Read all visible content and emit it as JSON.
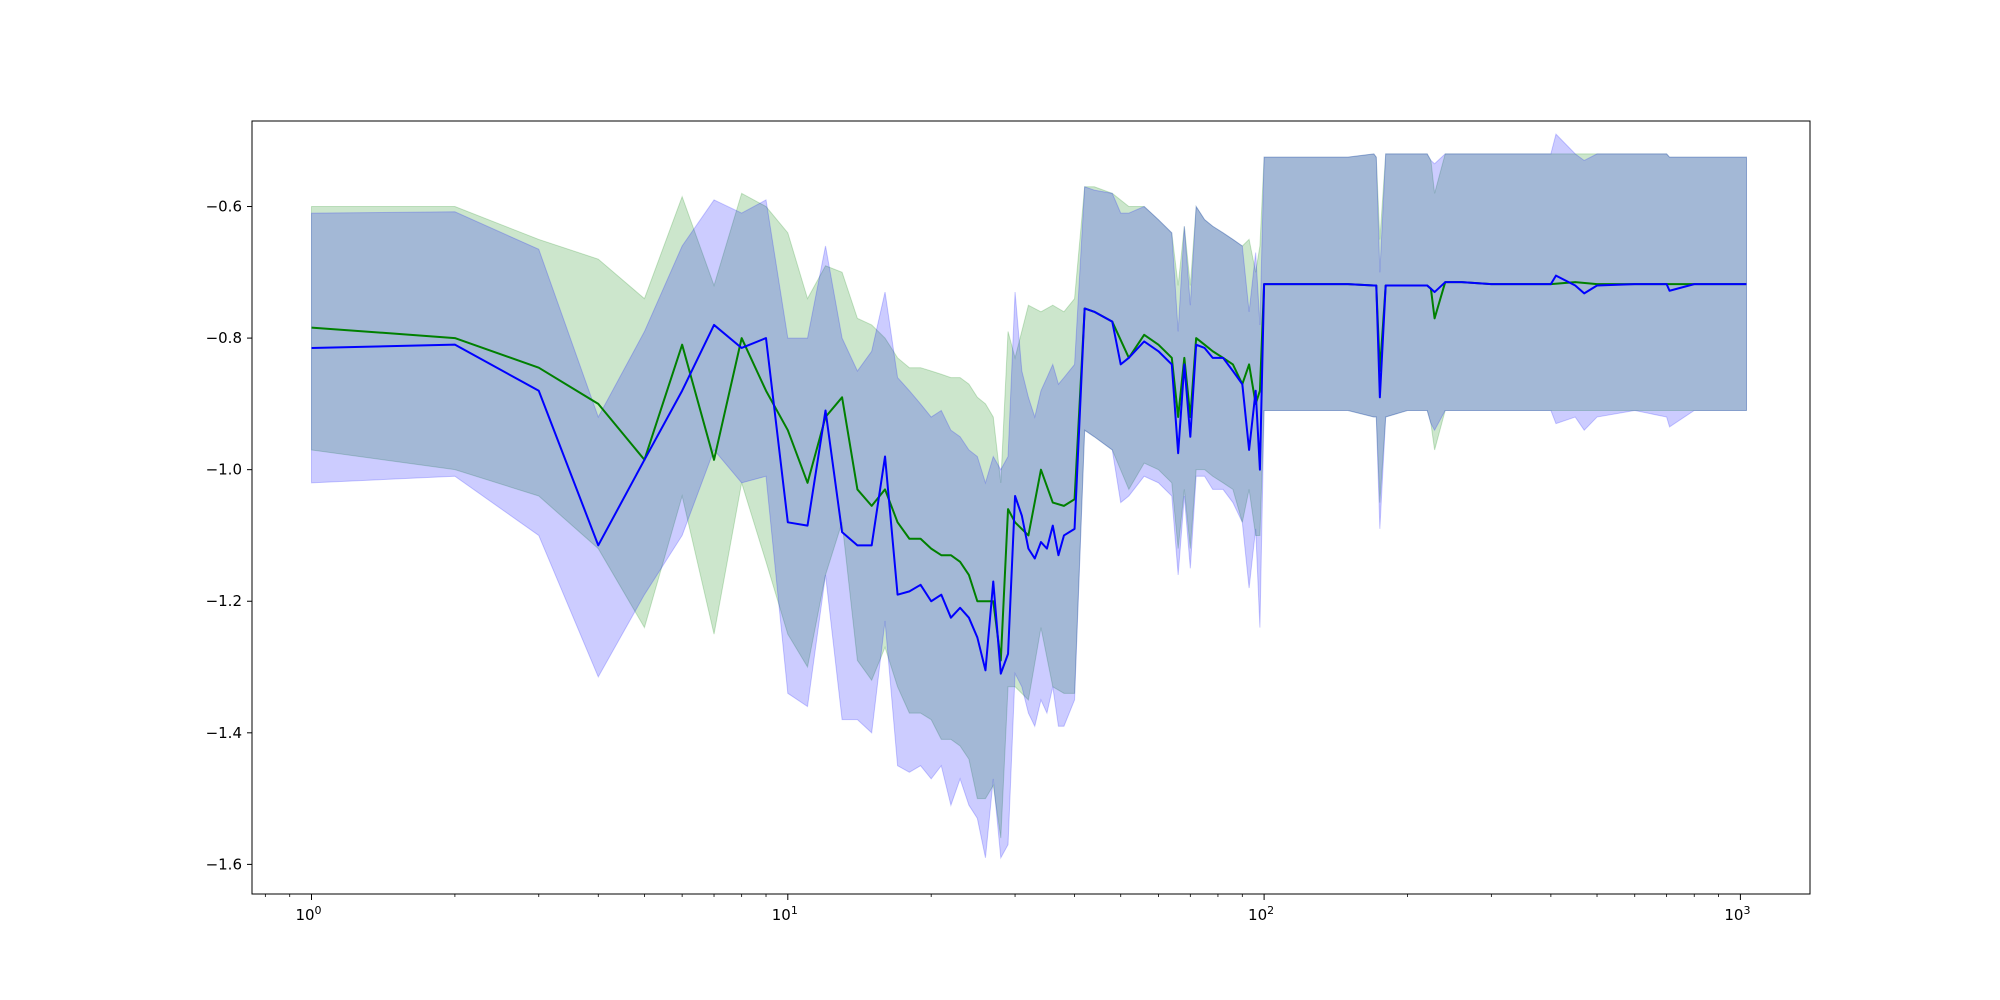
{
  "chart_data": {
    "type": "line",
    "title": "",
    "xlabel": "",
    "ylabel": "",
    "xscale": "log",
    "xlim": [
      0.75,
      1400
    ],
    "ylim": [
      -1.645,
      -0.47
    ],
    "grid": false,
    "legend": "none",
    "x_tick_labels": [
      {
        "base": "10",
        "exp": "0",
        "value": 1
      },
      {
        "base": "10",
        "exp": "1",
        "value": 10
      },
      {
        "base": "10",
        "exp": "2",
        "value": 100
      },
      {
        "base": "10",
        "exp": "3",
        "value": 1000
      }
    ],
    "y_tick_labels": [
      {
        "label": "−0.6",
        "value": -0.6
      },
      {
        "label": "−0.8",
        "value": -0.8
      },
      {
        "label": "−1.0",
        "value": -1.0
      },
      {
        "label": "−1.2",
        "value": -1.2
      },
      {
        "label": "−1.4",
        "value": -1.4
      },
      {
        "label": "−1.6",
        "value": -1.6
      }
    ],
    "series": [
      {
        "color": "#008000",
        "band_color": "#008000",
        "x": [
          1,
          2,
          3,
          4,
          5,
          6,
          7,
          8,
          9,
          10,
          11,
          12,
          13,
          14,
          15,
          16,
          17,
          18,
          19,
          20,
          21,
          22,
          23,
          24,
          25,
          26,
          27,
          28,
          29,
          30,
          32,
          34,
          36,
          38,
          40,
          42,
          44,
          48,
          52,
          56,
          60,
          64,
          66,
          68,
          70,
          72,
          75,
          78,
          82,
          86,
          90,
          93,
          96,
          98,
          100,
          150,
          170,
          172,
          175,
          180,
          200,
          220,
          224,
          228,
          240,
          260,
          300,
          350,
          400,
          450,
          500,
          600,
          700,
          710,
          800,
          1000,
          1030
        ],
        "y": [
          -0.784,
          -0.8,
          -0.845,
          -0.9,
          -0.985,
          -0.81,
          -0.985,
          -0.8,
          -0.88,
          -0.94,
          -1.02,
          -0.92,
          -0.89,
          -1.03,
          -1.055,
          -1.03,
          -1.08,
          -1.105,
          -1.105,
          -1.12,
          -1.13,
          -1.13,
          -1.14,
          -1.16,
          -1.2,
          -1.2,
          -1.2,
          -1.29,
          -1.06,
          -1.08,
          -1.1,
          -1.0,
          -1.05,
          -1.055,
          -1.045,
          -0.755,
          -0.76,
          -0.775,
          -0.83,
          -0.795,
          -0.81,
          -0.83,
          -0.92,
          -0.83,
          -0.92,
          -0.8,
          -0.81,
          -0.82,
          -0.83,
          -0.84,
          -0.87,
          -0.84,
          -0.9,
          -0.88,
          -0.718,
          -0.718,
          -0.72,
          -0.72,
          -0.85,
          -0.72,
          -0.72,
          -0.72,
          -0.725,
          -0.77,
          -0.715,
          -0.715,
          -0.718,
          -0.718,
          -0.718,
          -0.715,
          -0.718,
          -0.718,
          -0.718,
          -0.718,
          -0.718,
          -0.718,
          -0.718
        ],
        "band_upper": [
          -0.6,
          -0.6,
          -0.65,
          -0.68,
          -0.74,
          -0.585,
          -0.72,
          -0.58,
          -0.6,
          -0.64,
          -0.74,
          -0.69,
          -0.7,
          -0.77,
          -0.78,
          -0.8,
          -0.83,
          -0.845,
          -0.845,
          -0.85,
          -0.855,
          -0.86,
          -0.86,
          -0.87,
          -0.89,
          -0.9,
          -0.92,
          -1.02,
          -0.79,
          -0.83,
          -0.75,
          -0.76,
          -0.75,
          -0.76,
          -0.74,
          -0.57,
          -0.57,
          -0.58,
          -0.6,
          -0.6,
          -0.62,
          -0.64,
          -0.72,
          -0.63,
          -0.72,
          -0.6,
          -0.62,
          -0.63,
          -0.64,
          -0.65,
          -0.66,
          -0.65,
          -0.7,
          -0.66,
          -0.525,
          -0.525,
          -0.52,
          -0.525,
          -0.65,
          -0.52,
          -0.52,
          -0.52,
          -0.53,
          -0.58,
          -0.52,
          -0.52,
          -0.52,
          -0.52,
          -0.52,
          -0.52,
          -0.52,
          -0.52,
          -0.52,
          -0.525,
          -0.525,
          -0.525,
          -0.525
        ],
        "band_lower": [
          -0.97,
          -1.0,
          -1.04,
          -1.12,
          -1.24,
          -1.04,
          -1.25,
          -1.02,
          -1.14,
          -1.25,
          -1.3,
          -1.16,
          -1.08,
          -1.29,
          -1.32,
          -1.27,
          -1.33,
          -1.37,
          -1.37,
          -1.38,
          -1.41,
          -1.41,
          -1.42,
          -1.44,
          -1.5,
          -1.5,
          -1.48,
          -1.56,
          -1.33,
          -1.33,
          -1.35,
          -1.24,
          -1.33,
          -1.34,
          -1.34,
          -0.94,
          -0.95,
          -0.97,
          -1.03,
          -0.99,
          -1.0,
          -1.02,
          -1.12,
          -1.03,
          -1.12,
          -1.0,
          -1.0,
          -1.01,
          -1.02,
          -1.03,
          -1.08,
          -1.03,
          -1.1,
          -1.1,
          -0.91,
          -0.91,
          -0.92,
          -0.92,
          -1.05,
          -0.92,
          -0.91,
          -0.91,
          -0.93,
          -0.97,
          -0.91,
          -0.91,
          -0.91,
          -0.91,
          -0.91,
          -0.91,
          -0.91,
          -0.91,
          -0.91,
          -0.91,
          -0.91,
          -0.91,
          -0.91
        ]
      },
      {
        "color": "#0000ff",
        "band_color": "#0000ff",
        "x": [
          1,
          2,
          3,
          4,
          5,
          6,
          7,
          8,
          9,
          10,
          11,
          12,
          13,
          14,
          15,
          16,
          17,
          18,
          19,
          20,
          21,
          22,
          23,
          24,
          25,
          26,
          27,
          28,
          29,
          30,
          31,
          32,
          33,
          34,
          35,
          36,
          37,
          38,
          40,
          42,
          44,
          48,
          50,
          52,
          56,
          60,
          64,
          66,
          68,
          70,
          72,
          75,
          78,
          82,
          86,
          90,
          93,
          96,
          98,
          100,
          150,
          170,
          172,
          175,
          180,
          200,
          220,
          224,
          228,
          240,
          260,
          300,
          350,
          400,
          410,
          450,
          470,
          500,
          600,
          700,
          710,
          800,
          1000,
          1030
        ],
        "y": [
          -0.815,
          -0.81,
          -0.88,
          -1.115,
          -0.985,
          -0.88,
          -0.78,
          -0.815,
          -0.8,
          -1.08,
          -1.085,
          -0.91,
          -1.095,
          -1.115,
          -1.115,
          -0.98,
          -1.19,
          -1.185,
          -1.175,
          -1.2,
          -1.19,
          -1.225,
          -1.21,
          -1.225,
          -1.255,
          -1.305,
          -1.17,
          -1.31,
          -1.28,
          -1.04,
          -1.07,
          -1.12,
          -1.135,
          -1.11,
          -1.12,
          -1.085,
          -1.13,
          -1.1,
          -1.09,
          -0.755,
          -0.76,
          -0.775,
          -0.84,
          -0.83,
          -0.805,
          -0.82,
          -0.84,
          -0.975,
          -0.84,
          -0.95,
          -0.81,
          -0.815,
          -0.83,
          -0.83,
          -0.85,
          -0.87,
          -0.97,
          -0.88,
          -1.0,
          -0.718,
          -0.718,
          -0.72,
          -0.72,
          -0.89,
          -0.72,
          -0.72,
          -0.72,
          -0.725,
          -0.73,
          -0.715,
          -0.715,
          -0.718,
          -0.718,
          -0.718,
          -0.705,
          -0.72,
          -0.732,
          -0.72,
          -0.718,
          -0.718,
          -0.728,
          -0.718,
          -0.718,
          -0.718
        ],
        "band_upper": [
          -0.61,
          -0.608,
          -0.665,
          -0.92,
          -0.79,
          -0.66,
          -0.59,
          -0.61,
          -0.59,
          -0.8,
          -0.8,
          -0.66,
          -0.8,
          -0.85,
          -0.82,
          -0.73,
          -0.86,
          -0.88,
          -0.9,
          -0.92,
          -0.91,
          -0.94,
          -0.95,
          -0.97,
          -0.98,
          -1.02,
          -0.98,
          -1.0,
          -0.98,
          -0.73,
          -0.85,
          -0.89,
          -0.92,
          -0.88,
          -0.86,
          -0.84,
          -0.87,
          -0.86,
          -0.84,
          -0.57,
          -0.575,
          -0.58,
          -0.61,
          -0.61,
          -0.6,
          -0.62,
          -0.64,
          -0.79,
          -0.63,
          -0.75,
          -0.6,
          -0.62,
          -0.63,
          -0.64,
          -0.65,
          -0.66,
          -0.76,
          -0.67,
          -0.78,
          -0.525,
          -0.525,
          -0.52,
          -0.525,
          -0.7,
          -0.52,
          -0.52,
          -0.52,
          -0.53,
          -0.535,
          -0.52,
          -0.52,
          -0.52,
          -0.52,
          -0.52,
          -0.49,
          -0.52,
          -0.53,
          -0.52,
          -0.52,
          -0.52,
          -0.525,
          -0.525,
          -0.525,
          -0.525
        ],
        "band_lower": [
          -1.02,
          -1.01,
          -1.1,
          -1.315,
          -1.19,
          -1.1,
          -0.97,
          -1.02,
          -1.01,
          -1.34,
          -1.36,
          -1.16,
          -1.38,
          -1.38,
          -1.4,
          -1.23,
          -1.45,
          -1.46,
          -1.45,
          -1.47,
          -1.45,
          -1.51,
          -1.47,
          -1.51,
          -1.53,
          -1.59,
          -1.47,
          -1.59,
          -1.57,
          -1.31,
          -1.33,
          -1.37,
          -1.39,
          -1.35,
          -1.37,
          -1.33,
          -1.39,
          -1.39,
          -1.35,
          -0.94,
          -0.95,
          -0.97,
          -1.05,
          -1.04,
          -1.01,
          -1.02,
          -1.04,
          -1.16,
          -1.04,
          -1.15,
          -1.01,
          -1.01,
          -1.03,
          -1.03,
          -1.05,
          -1.08,
          -1.18,
          -1.09,
          -1.24,
          -0.91,
          -0.91,
          -0.92,
          -0.92,
          -1.09,
          -0.92,
          -0.91,
          -0.91,
          -0.93,
          -0.94,
          -0.91,
          -0.91,
          -0.91,
          -0.91,
          -0.91,
          -0.93,
          -0.92,
          -0.94,
          -0.92,
          -0.91,
          -0.92,
          -0.935,
          -0.91,
          -0.91,
          -0.91
        ]
      }
    ]
  }
}
